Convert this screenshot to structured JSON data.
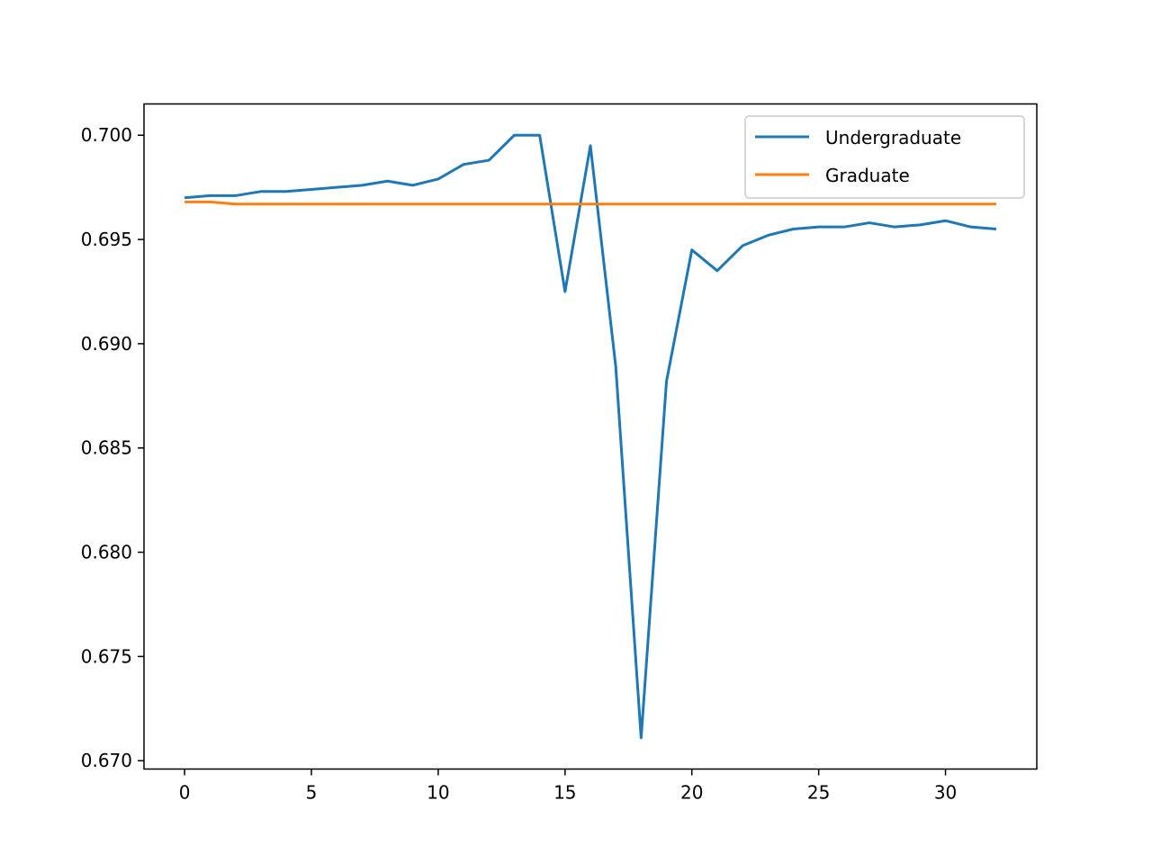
{
  "chart_data": {
    "type": "line",
    "title": "",
    "xlabel": "",
    "ylabel": "",
    "xlim": [
      -1.6,
      33.6
    ],
    "ylim": [
      0.6696,
      0.7015
    ],
    "xticks": [
      0,
      5,
      10,
      15,
      20,
      25,
      30
    ],
    "xtick_labels": [
      "0",
      "5",
      "10",
      "15",
      "20",
      "25",
      "30"
    ],
    "yticks": [
      0.67,
      0.675,
      0.68,
      0.685,
      0.69,
      0.695,
      0.7
    ],
    "ytick_labels": [
      "0.670",
      "0.675",
      "0.680",
      "0.685",
      "0.690",
      "0.695",
      "0.700"
    ],
    "grid": false,
    "legend_position": "top-right",
    "x": [
      0,
      1,
      2,
      3,
      4,
      5,
      6,
      7,
      8,
      9,
      10,
      11,
      12,
      13,
      14,
      15,
      16,
      17,
      18,
      19,
      20,
      21,
      22,
      23,
      24,
      25,
      26,
      27,
      28,
      29,
      30,
      31,
      32
    ],
    "series": [
      {
        "name": "Undergraduate",
        "color": "#1f77b4",
        "values": [
          0.697,
          0.6971,
          0.6971,
          0.6973,
          0.6973,
          0.6974,
          0.6975,
          0.6976,
          0.6978,
          0.6976,
          0.6979,
          0.6986,
          0.6988,
          0.7,
          0.7,
          0.6925,
          0.6995,
          0.6889,
          0.6711,
          0.6882,
          0.6945,
          0.6935,
          0.6947,
          0.6952,
          0.6955,
          0.6956,
          0.6956,
          0.6958,
          0.6956,
          0.6957,
          0.6959,
          0.6956,
          0.6955
        ]
      },
      {
        "name": "Graduate",
        "color": "#ff7f0e",
        "values": [
          0.6968,
          0.6968,
          0.6967,
          0.6967,
          0.6967,
          0.6967,
          0.6967,
          0.6967,
          0.6967,
          0.6967,
          0.6967,
          0.6967,
          0.6967,
          0.6967,
          0.6967,
          0.6967,
          0.6967,
          0.6967,
          0.6967,
          0.6967,
          0.6967,
          0.6967,
          0.6967,
          0.6967,
          0.6967,
          0.6967,
          0.6967,
          0.6967,
          0.6967,
          0.6967,
          0.6967,
          0.6967,
          0.6967
        ]
      }
    ]
  }
}
